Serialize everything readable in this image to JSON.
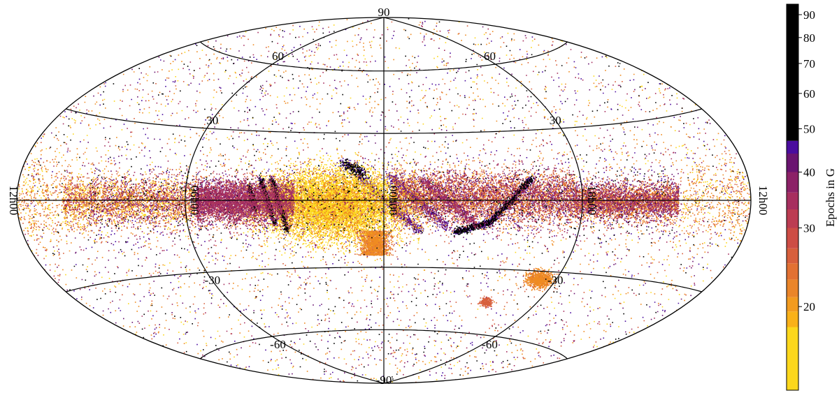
{
  "map": {
    "projection": "Hammer-Aitoff (all-sky)",
    "lat_labels": [
      {
        "text": "90",
        "lat": 90,
        "side": "top"
      },
      {
        "text": "60",
        "lat": 60,
        "side": "left"
      },
      {
        "text": "60",
        "lat": 60,
        "side": "right"
      },
      {
        "text": "30",
        "lat": 30,
        "side": "left"
      },
      {
        "text": "30",
        "lat": 30,
        "side": "right"
      },
      {
        "text": "-30",
        "lat": -30,
        "side": "left"
      },
      {
        "text": "-30",
        "lat": -30,
        "side": "right"
      },
      {
        "text": "-60",
        "lat": -60,
        "side": "left"
      },
      {
        "text": "-60",
        "lat": -60,
        "side": "right"
      },
      {
        "text": "-90",
        "lat": -90,
        "side": "bottom"
      }
    ],
    "lon_labels": [
      {
        "text": "12h00",
        "lon": -180
      },
      {
        "text": "06h00",
        "lon": -90
      },
      {
        "text": "00h00",
        "lon": 0
      },
      {
        "text": "18h00",
        "lon": 90
      },
      {
        "text": "12h00",
        "lon": 180
      }
    ],
    "parallels": [
      -60,
      -30,
      0,
      30,
      60
    ],
    "meridians": [
      -90,
      0,
      90
    ]
  },
  "colorbar": {
    "label": "Epochs in G",
    "ticks": [
      "20",
      "30",
      "40",
      "50",
      "60",
      "70",
      "80",
      "90"
    ],
    "tick_values": [
      20,
      30,
      40,
      50,
      60,
      70,
      80,
      90
    ],
    "range": [
      13,
      95
    ],
    "scale": "log",
    "bands": [
      {
        "from": 13,
        "to": 18,
        "color": "#fcd71c"
      },
      {
        "from": 18,
        "to": 19.5,
        "color": "#f9b119"
      },
      {
        "from": 19.5,
        "to": 21,
        "color": "#f29b1f"
      },
      {
        "from": 21,
        "to": 23,
        "color": "#ea8529"
      },
      {
        "from": 23,
        "to": 25,
        "color": "#e27133"
      },
      {
        "from": 25,
        "to": 27,
        "color": "#d75f3c"
      },
      {
        "from": 27,
        "to": 30,
        "color": "#cd4d45"
      },
      {
        "from": 30,
        "to": 33,
        "color": "#bc3c52"
      },
      {
        "from": 33,
        "to": 36,
        "color": "#a72f5f"
      },
      {
        "from": 36,
        "to": 40,
        "color": "#8c2167"
      },
      {
        "from": 40,
        "to": 44,
        "color": "#6a1470"
      },
      {
        "from": 44,
        "to": 47,
        "color": "#4a0c9e"
      },
      {
        "from": 47,
        "to": 95,
        "color": "#000000"
      }
    ]
  },
  "colors": {
    "yellow": "#fcd71c",
    "orange": "#ef8b22",
    "red_orange": "#d75f3c",
    "magenta": "#a72f5f",
    "purple": "#6a1470",
    "indigo": "#4a0c9e",
    "black": "#000000"
  }
}
